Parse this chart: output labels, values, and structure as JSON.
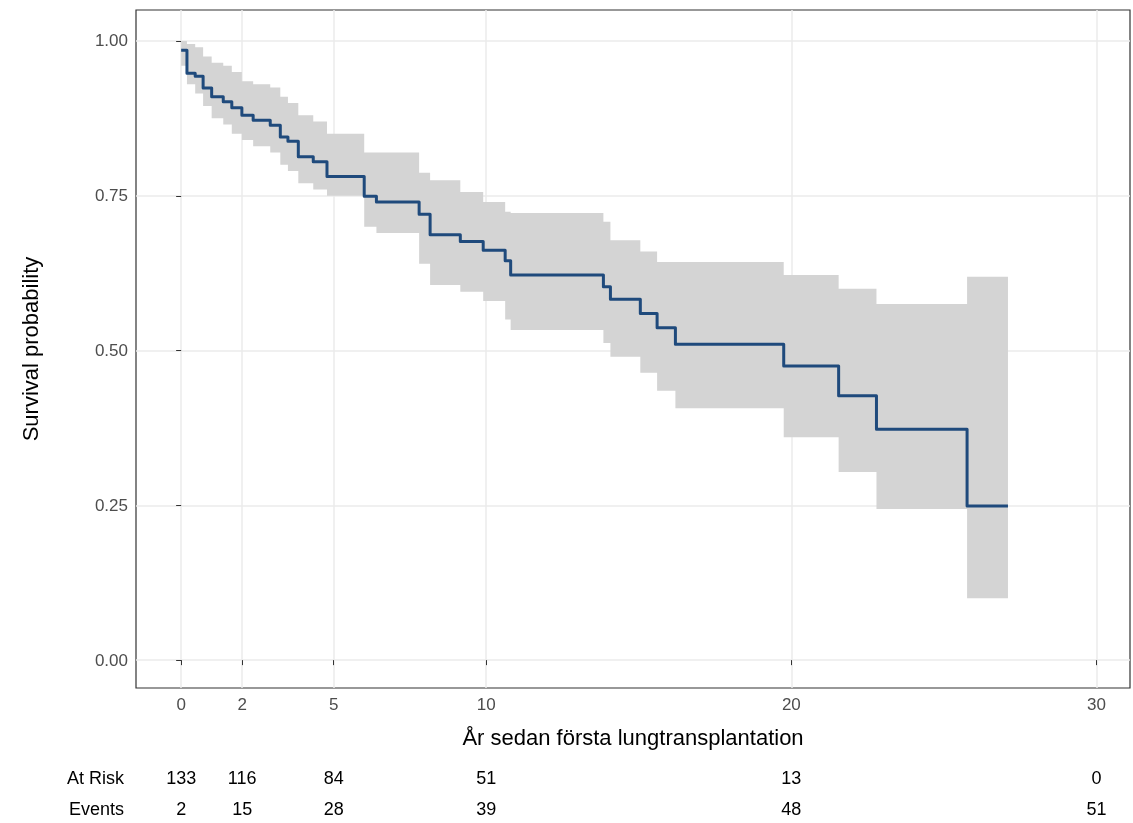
{
  "chart_data": {
    "type": "step",
    "xlabel": "År sedan första lungtransplantation",
    "ylabel": "Survival probability",
    "x": [
      0,
      0.19,
      0.46,
      0.72,
      1.0,
      1.38,
      1.66,
      1.99,
      2.36,
      2.92,
      3.25,
      3.5,
      3.84,
      4.33,
      4.78,
      6.0,
      6.4,
      7.8,
      8.16,
      9.15,
      9.9,
      10.62,
      10.8,
      13.84,
      14.07,
      15.05,
      15.6,
      16.2,
      19.75,
      21.55,
      22.79,
      25.76,
      27.1
    ],
    "series": [
      {
        "color": "#1f4a7c",
        "values": [
          0.985,
          0.948,
          0.943,
          0.924,
          0.91,
          0.902,
          0.892,
          0.88,
          0.872,
          0.864,
          0.845,
          0.838,
          0.813,
          0.805,
          0.781,
          0.749,
          0.74,
          0.72,
          0.687,
          0.676,
          0.662,
          0.645,
          0.622,
          0.603,
          0.583,
          0.56,
          0.537,
          0.51,
          0.475,
          0.427,
          0.373,
          0.249,
          0.249
        ],
        "lower": [
          0.96,
          0.93,
          0.915,
          0.895,
          0.875,
          0.865,
          0.85,
          0.84,
          0.83,
          0.82,
          0.8,
          0.79,
          0.77,
          0.76,
          0.75,
          0.7,
          0.69,
          0.64,
          0.606,
          0.595,
          0.58,
          0.55,
          0.533,
          0.512,
          0.49,
          0.464,
          0.435,
          0.407,
          0.36,
          0.304,
          0.244,
          0.1,
          0.1
        ],
        "upper": [
          1.0,
          0.995,
          0.99,
          0.975,
          0.965,
          0.96,
          0.95,
          0.935,
          0.93,
          0.925,
          0.91,
          0.9,
          0.88,
          0.87,
          0.85,
          0.82,
          0.82,
          0.787,
          0.775,
          0.756,
          0.74,
          0.724,
          0.722,
          0.708,
          0.678,
          0.66,
          0.643,
          0.643,
          0.622,
          0.6,
          0.575,
          0.619,
          0.619
        ]
      }
    ],
    "xlim": [
      -1.48,
      31.1
    ],
    "xticks": [
      0,
      2,
      5,
      10,
      20,
      30
    ],
    "ylim": [
      -0.045,
      1.05
    ],
    "yticks": [
      {
        "value": 0,
        "label": "0.00"
      },
      {
        "value": 0.25,
        "label": "0.25"
      },
      {
        "value": 0.5,
        "label": "0.50"
      },
      {
        "value": 0.75,
        "label": "0.75"
      },
      {
        "value": 1,
        "label": "1.00"
      }
    ],
    "grid": true,
    "marker": "none",
    "line_style": "solid",
    "annotations": [
      "At Risk",
      "133",
      "116",
      "84",
      "51",
      "13",
      "0",
      "Events",
      "2",
      "15",
      "28",
      "39",
      "48",
      "51"
    ]
  }
}
